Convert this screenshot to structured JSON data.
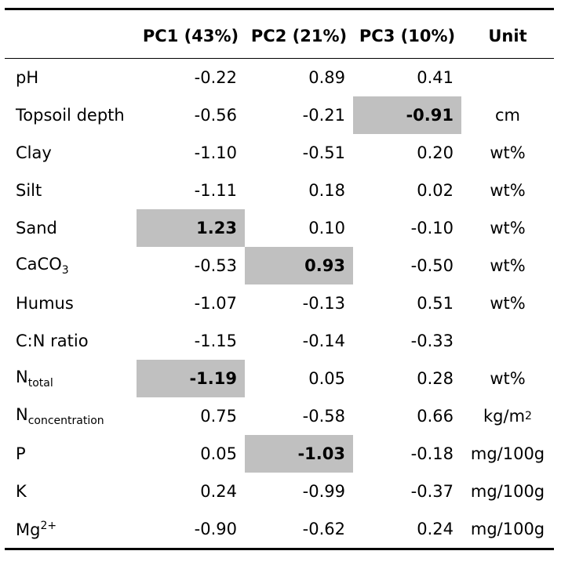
{
  "table": {
    "headers": {
      "variable": "",
      "pc1": "PC1 (43%)",
      "pc2": "PC2 (21%)",
      "pc3": "PC3 (10%)",
      "unit": "Unit"
    },
    "rows": [
      {
        "name": "pH",
        "sub": "",
        "sup": "",
        "pc1": "-0.22",
        "pc2": "0.89",
        "pc3": "0.41",
        "unit": "",
        "unit_sup": "",
        "highlight": ""
      },
      {
        "name": "Topsoil depth",
        "sub": "",
        "sup": "",
        "pc1": "-0.56",
        "pc2": "-0.21",
        "pc3": "-0.91",
        "unit": "cm",
        "unit_sup": "",
        "highlight": "pc3"
      },
      {
        "name": "Clay",
        "sub": "",
        "sup": "",
        "pc1": "-1.10",
        "pc2": "-0.51",
        "pc3": "0.20",
        "unit": "wt%",
        "unit_sup": "",
        "highlight": ""
      },
      {
        "name": "Silt",
        "sub": "",
        "sup": "",
        "pc1": "-1.11",
        "pc2": "0.18",
        "pc3": "0.02",
        "unit": "wt%",
        "unit_sup": "",
        "highlight": ""
      },
      {
        "name": "Sand",
        "sub": "",
        "sup": "",
        "pc1": "1.23",
        "pc2": "0.10",
        "pc3": "-0.10",
        "unit": "wt%",
        "unit_sup": "",
        "highlight": "pc1"
      },
      {
        "name": "CaCO",
        "sub": "3",
        "sup": "",
        "pc1": "-0.53",
        "pc2": "0.93",
        "pc3": "-0.50",
        "unit": "wt%",
        "unit_sup": "",
        "highlight": "pc2"
      },
      {
        "name": "Humus",
        "sub": "",
        "sup": "",
        "pc1": "-1.07",
        "pc2": "-0.13",
        "pc3": "0.51",
        "unit": "wt%",
        "unit_sup": "",
        "highlight": ""
      },
      {
        "name": "C:N ratio",
        "sub": "",
        "sup": "",
        "pc1": "-1.15",
        "pc2": "-0.14",
        "pc3": "-0.33",
        "unit": "",
        "unit_sup": "",
        "highlight": ""
      },
      {
        "name": "N",
        "sub": "total",
        "sup": "",
        "pc1": "-1.19",
        "pc2": "0.05",
        "pc3": "0.28",
        "unit": "wt%",
        "unit_sup": "",
        "highlight": "pc1"
      },
      {
        "name": "N",
        "sub": "concentration",
        "sup": "",
        "pc1": "0.75",
        "pc2": "-0.58",
        "pc3": "0.66",
        "unit": "kg/m",
        "unit_sup": "2",
        "highlight": ""
      },
      {
        "name": "P",
        "sub": "",
        "sup": "",
        "pc1": "0.05",
        "pc2": "-1.03",
        "pc3": "-0.18",
        "unit": "mg/100g",
        "unit_sup": "",
        "highlight": "pc2"
      },
      {
        "name": "K",
        "sub": "",
        "sup": "",
        "pc1": "0.24",
        "pc2": "-0.99",
        "pc3": "-0.37",
        "unit": "mg/100g",
        "unit_sup": "",
        "highlight": ""
      },
      {
        "name": "Mg",
        "sub": "",
        "sup": "2+",
        "pc1": "-0.90",
        "pc2": "-0.62",
        "pc3": "0.24",
        "unit": "mg/100g",
        "unit_sup": "",
        "highlight": ""
      }
    ]
  }
}
